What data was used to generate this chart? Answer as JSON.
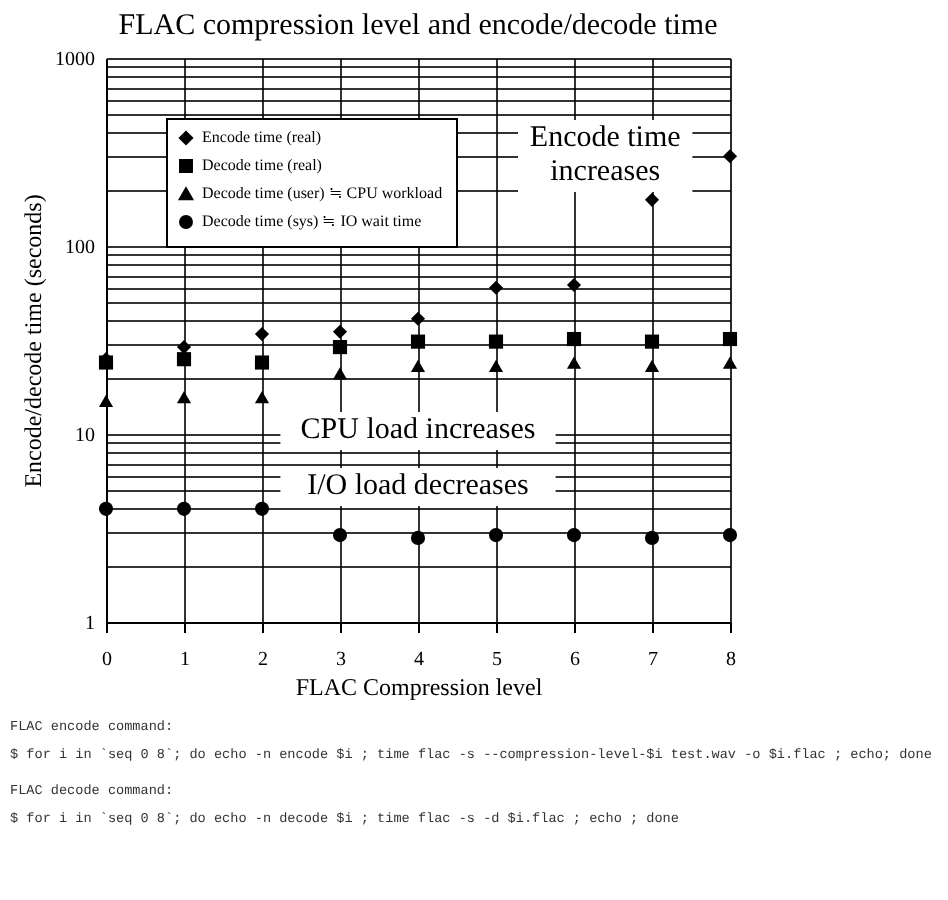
{
  "chart_data": {
    "type": "scatter",
    "title": "FLAC compression level and encode/decode time",
    "xlabel": "FLAC Compression level",
    "ylabel": "Encode/decode time (seconds)",
    "x": [
      0,
      1,
      2,
      3,
      4,
      5,
      6,
      7,
      8
    ],
    "series": [
      {
        "name": "Encode time (real)",
        "color": "#000000",
        "marker": "diamond",
        "values": [
          25,
          29,
          34,
          35,
          41,
          60,
          62,
          176,
          300
        ]
      },
      {
        "name": "Decode time (real)",
        "color": "#000000",
        "marker": "square",
        "values": [
          24,
          25,
          24,
          29,
          31,
          31,
          32,
          31,
          32
        ]
      },
      {
        "name": "Decode time (user) ≒ CPU workload",
        "color": "#000000",
        "marker": "triangle",
        "values": [
          15,
          15.7,
          15.7,
          21,
          23,
          23,
          24,
          23,
          24
        ]
      },
      {
        "name": "Decode time (sys) ≒ IO wait time",
        "color": "#000000",
        "marker": "circle",
        "values": [
          4,
          4,
          4,
          2.9,
          2.8,
          2.9,
          2.9,
          2.8,
          2.9
        ]
      }
    ],
    "xlim": [
      0,
      8
    ],
    "xticks": [
      0,
      1,
      2,
      3,
      4,
      5,
      6,
      7,
      8
    ],
    "log": "y",
    "ylim": [
      1,
      1000
    ],
    "yticks": [
      1,
      {
        "value": 2,
        "label": null
      },
      {
        "value": 3,
        "label": null
      },
      {
        "value": 4,
        "label": null
      },
      {
        "value": 5,
        "label": null
      },
      {
        "value": 6,
        "label": null
      },
      {
        "value": 7,
        "label": null
      },
      {
        "value": 8,
        "label": null
      },
      {
        "value": 9,
        "label": null
      },
      10,
      {
        "value": 20,
        "label": null
      },
      {
        "value": 30,
        "label": null
      },
      {
        "value": 40,
        "label": null
      },
      {
        "value": 50,
        "label": null
      },
      {
        "value": 60,
        "label": null
      },
      {
        "value": 70,
        "label": null
      },
      {
        "value": 80,
        "label": null
      },
      {
        "value": 90,
        "label": null
      },
      100,
      {
        "value": 200,
        "label": null
      },
      {
        "value": 300,
        "label": null
      },
      {
        "value": 400,
        "label": null
      },
      {
        "value": 500,
        "label": null
      },
      {
        "value": 600,
        "label": null
      },
      {
        "value": 700,
        "label": null
      },
      {
        "value": 800,
        "label": null
      },
      {
        "value": 900,
        "label": null
      },
      1000
    ],
    "grid": true,
    "legend": "top left",
    "annotations": [
      "Encode time\nincreases",
      "CPU load increases",
      "I/O load decreases",
      "FLAC encode command:",
      "$ for i in `seq 0 8`; do echo -n encode $i ; time flac -s --compression-level-$i test.wav -o $i.flac ; echo; done",
      "FLAC decode command:",
      "$ for i in `seq 0 8`; do echo -n decode $i ; time flac -s -d $i.flac ; echo ; done"
    ]
  }
}
